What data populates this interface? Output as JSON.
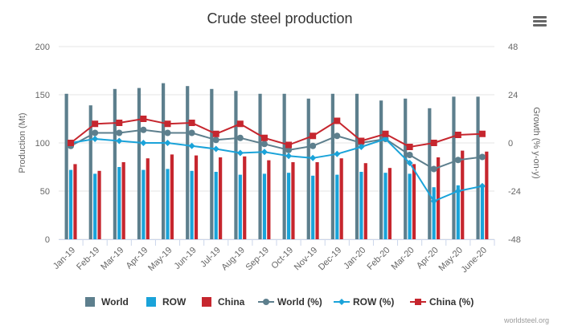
{
  "chart_data": {
    "type": "bar",
    "title": "Crude steel production",
    "ylabel_left": "Production (Mt)",
    "ylabel_right": "Growth (% y-on-y)",
    "categories": [
      "Jan-19",
      "Feb-19",
      "Mar-19",
      "Apr-19",
      "May-19",
      "Jun-19",
      "Jul-19",
      "Aug-19",
      "Sep-19",
      "Oct-19",
      "Nov-19",
      "Dec-19",
      "Jan-20",
      "Feb-20",
      "Mar-20",
      "Apr-20",
      "May-20",
      "June-20"
    ],
    "ylim_left": [
      0,
      200
    ],
    "ylim_right": [
      -48,
      48
    ],
    "yticks_left": [
      "0",
      "50",
      "100",
      "150",
      "200"
    ],
    "yticks_right": [
      "-48",
      "-24",
      "0",
      "24",
      "48"
    ],
    "grid": true,
    "legend_position": "bottom",
    "series": [
      {
        "name": "World",
        "type": "bar",
        "axis": "left",
        "color": "#5d7f8d",
        "values": [
          151,
          139,
          156,
          157,
          162,
          159,
          156,
          154,
          151,
          151,
          146,
          151,
          151,
          144,
          146,
          136,
          148,
          148
        ]
      },
      {
        "name": "ROW",
        "type": "bar",
        "axis": "left",
        "color": "#1aa3d9",
        "values": [
          72,
          68,
          75,
          72,
          73,
          71,
          70,
          67,
          68,
          69,
          66,
          67,
          70,
          69,
          68,
          54,
          56,
          57
        ]
      },
      {
        "name": "China",
        "type": "bar",
        "axis": "left",
        "color": "#c6262e",
        "values": [
          78,
          71,
          80,
          84,
          88,
          87,
          85,
          86,
          82,
          80,
          80,
          84,
          79,
          74,
          78,
          85,
          92,
          91
        ]
      },
      {
        "name": "World (%)",
        "type": "line",
        "axis": "right",
        "color": "#5d7f8d",
        "marker": "circle",
        "values": [
          -1.5,
          5,
          5,
          6.5,
          5,
          5,
          1.5,
          2.5,
          -0.5,
          -3.5,
          -1.5,
          3.5,
          0,
          2,
          -6,
          -13,
          -8.5,
          -7
        ]
      },
      {
        "name": "ROW (%)",
        "type": "line",
        "axis": "right",
        "color": "#1aa3d9",
        "marker": "diamond",
        "values": [
          0,
          2,
          1,
          0,
          0,
          -1.5,
          -3,
          -5,
          -4.5,
          -6.5,
          -7.5,
          -5.5,
          -2,
          2,
          -10,
          -29,
          -24,
          -21.5
        ]
      },
      {
        "name": "China (%)",
        "type": "line",
        "axis": "right",
        "color": "#c6262e",
        "marker": "square",
        "values": [
          0,
          9.5,
          10,
          12,
          9.5,
          10,
          4.5,
          9.5,
          2.5,
          -1,
          3.5,
          11,
          1,
          4.5,
          -2,
          0,
          4,
          4.5
        ]
      }
    ],
    "credit": "worldsteel.org"
  },
  "menu_icon": "hamburger-menu-icon"
}
